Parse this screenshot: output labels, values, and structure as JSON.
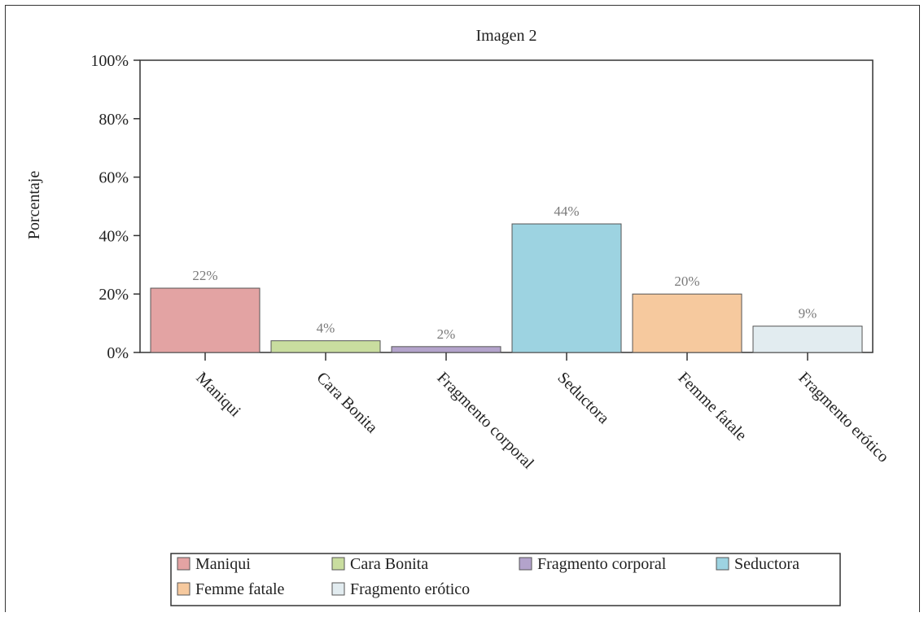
{
  "chart_data": {
    "type": "bar",
    "title": "Imagen 2",
    "xlabel": "",
    "ylabel": "Porcentaje",
    "ylim": [
      0,
      100
    ],
    "yticks": [
      "0%",
      "20%",
      "40%",
      "60%",
      "80%",
      "100%"
    ],
    "categories": [
      "Maniqui",
      "Cara Bonita",
      "Fragmento corporal",
      "Seductora",
      "Femme fatale",
      "Fragmento erótico"
    ],
    "values": [
      22,
      4,
      2,
      44,
      20,
      9
    ],
    "data_labels": [
      "22%",
      "4%",
      "2%",
      "44%",
      "20%",
      "9%"
    ],
    "colors": [
      "#e3a3a3",
      "#c9dd9f",
      "#b3a3cb",
      "#9dd3e1",
      "#f6c99e",
      "#e2ecf0"
    ],
    "legend": {
      "placement": "bottom",
      "entries": [
        "Maniqui",
        "Cara Bonita",
        "Fragmento corporal",
        "Seductora",
        "Femme fatale",
        "Fragmento erótico"
      ]
    },
    "grid": false
  }
}
